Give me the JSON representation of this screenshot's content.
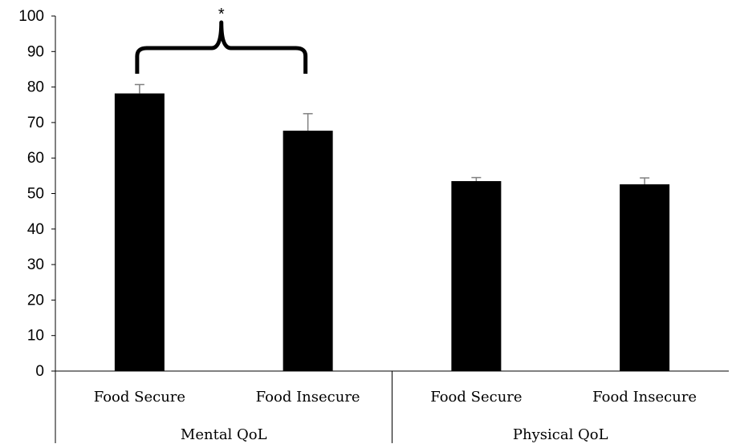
{
  "chart_data": {
    "type": "bar",
    "groups": [
      {
        "label": "Mental QoL",
        "categories": [
          "Food Secure",
          "Food Insecure"
        ]
      },
      {
        "label": "Physical QoL",
        "categories": [
          "Food Secure",
          "Food Insecure"
        ]
      }
    ],
    "categories": [
      "Food Secure",
      "Food Insecure",
      "Food Secure",
      "Food Insecure"
    ],
    "values": [
      78.2,
      67.7,
      53.5,
      52.6
    ],
    "error": [
      2.5,
      4.8,
      1.0,
      1.8
    ],
    "title": "",
    "xlabel": "",
    "ylabel": "",
    "ylim": [
      0,
      100
    ],
    "yticks": [
      0,
      10,
      20,
      30,
      40,
      50,
      60,
      70,
      80,
      90,
      100
    ],
    "grid": false,
    "bar_color": "#000000",
    "error_bar_color": "#808080",
    "annotations": [
      {
        "text": "*",
        "type": "significance-bracket",
        "between": [
          0,
          1
        ]
      }
    ]
  }
}
